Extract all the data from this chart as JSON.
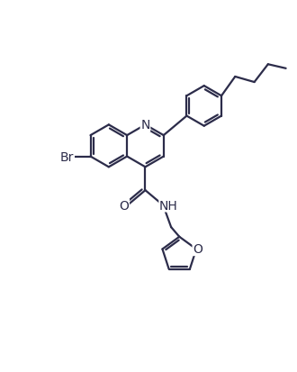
{
  "bg_color": "#ffffff",
  "line_color": "#2c2c4a",
  "bond_lw": 1.6,
  "figsize": [
    3.3,
    4.14
  ],
  "dpi": 100,
  "xlim": [
    -1.0,
    9.5
  ],
  "ylim": [
    -1.0,
    12.5
  ]
}
